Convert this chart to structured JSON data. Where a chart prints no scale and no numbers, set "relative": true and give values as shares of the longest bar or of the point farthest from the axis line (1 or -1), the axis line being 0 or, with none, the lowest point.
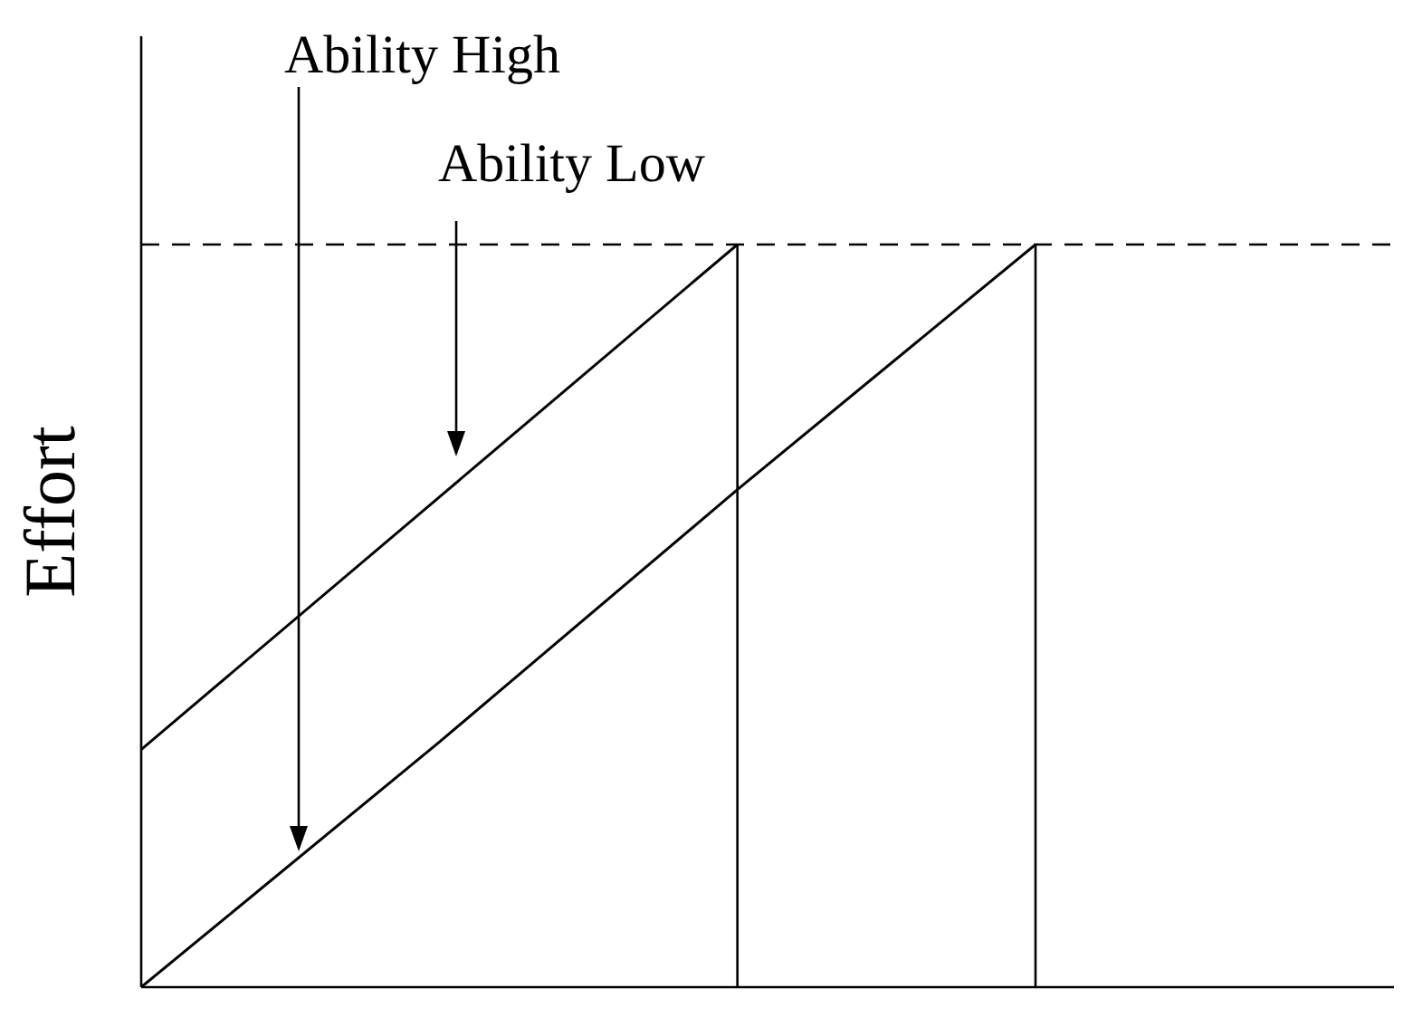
{
  "chart_data": {
    "type": "line",
    "relative": true,
    "ylabel": "Effort",
    "categories": [
      null,
      null,
      null,
      null
    ],
    "grid": false,
    "legend": false,
    "marker": "none",
    "line_style": "solid",
    "series": [
      {
        "color": "#000000",
        "values": [
          0.32,
          0.66,
          1,
          null
        ]
      },
      {
        "color": "#000000",
        "values": [
          0,
          0.33,
          0.67,
          1
        ]
      }
    ],
    "ref_lines": [
      {
        "axis": "y",
        "value": 1,
        "color": "#000000",
        "line_style": "dashed"
      }
    ],
    "annotations": [
      "Ability High",
      "Ability Low"
    ]
  }
}
